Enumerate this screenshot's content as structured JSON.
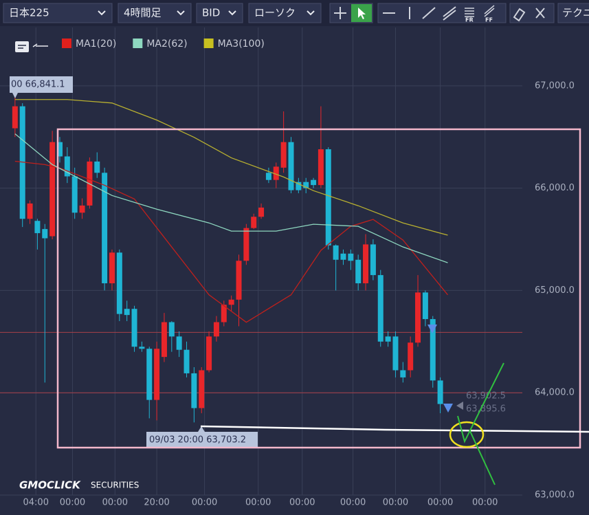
{
  "toolbar": {
    "dropdowns": [
      "日本225",
      "4時間足",
      "BID",
      "ローソク"
    ],
    "icon_labels": [
      "FR",
      "FF"
    ],
    "tech_button": "テクニ"
  },
  "logo": {
    "brand": "GMOCLICK",
    "suffix": "SECURITIES"
  },
  "chart_data": {
    "type": "candlestick",
    "legend": [
      {
        "name": "MA1(20)",
        "color": "#e0201c"
      },
      {
        "name": "MA2(62)",
        "color": "#8ed8c0"
      },
      {
        "name": "MA3(100)",
        "color": "#c8c020"
      }
    ],
    "up_color": "#e8262a",
    "down_color": "#1fb5d4",
    "candles": {
      "open": [
        66585,
        66800,
        65700,
        65680,
        65600,
        65530,
        66450,
        66310,
        66115,
        65760,
        65830,
        66260,
        66150,
        65070,
        65370,
        64820,
        64820,
        64450,
        64430,
        63930,
        64350,
        64690,
        64550,
        64420,
        64190,
        63850,
        64220,
        64550,
        64690,
        64860,
        64910,
        65290,
        65610,
        65720,
        66150,
        66080,
        66200,
        66450,
        66060,
        66060,
        66080,
        66030,
        66380,
        65440,
        65360,
        65360,
        65300,
        65070,
        65450,
        65150,
        64550,
        64550,
        64220,
        64220,
        64490,
        64980,
        64720,
        64120
      ],
      "high": [
        66900,
        66830,
        65880,
        65700,
        65650,
        66560,
        66500,
        66400,
        66200,
        65900,
        66300,
        66350,
        66200,
        65400,
        65400,
        64900,
        64850,
        64500,
        64450,
        64500,
        64780,
        64700,
        64600,
        64500,
        64250,
        64250,
        64600,
        64750,
        64900,
        64950,
        65350,
        65650,
        65750,
        65850,
        66200,
        66250,
        66750,
        66500,
        66100,
        66100,
        66100,
        66800,
        66400,
        65450,
        65400,
        65400,
        65350,
        65550,
        65500,
        65200,
        64600,
        64600,
        64300,
        64550,
        65150,
        65000,
        64750,
        64150
      ],
      "low": [
        66500,
        65620,
        65650,
        65400,
        64100,
        65500,
        66250,
        66050,
        65700,
        65700,
        65800,
        66100,
        65000,
        65000,
        64700,
        64700,
        64400,
        64400,
        63750,
        63730,
        64300,
        64400,
        64350,
        64150,
        63710,
        63800,
        64200,
        64500,
        64650,
        64800,
        64650,
        65250,
        65600,
        65700,
        66050,
        66000,
        66150,
        65950,
        65950,
        65950,
        66000,
        66000,
        65400,
        65000,
        65250,
        65200,
        65000,
        65000,
        65100,
        64450,
        64450,
        64150,
        64100,
        64150,
        64450,
        64650,
        64050,
        63800
      ],
      "close": [
        66800,
        65700,
        65850,
        65560,
        65510,
        66450,
        66310,
        66115,
        65760,
        65830,
        66260,
        66150,
        65070,
        65370,
        64770,
        64760,
        64450,
        64430,
        63930,
        64430,
        64690,
        64550,
        64420,
        64190,
        63850,
        64220,
        64550,
        64690,
        64860,
        64910,
        65290,
        65610,
        65720,
        65810,
        66080,
        66210,
        66450,
        65980,
        65980,
        66000,
        66030,
        66380,
        65440,
        65300,
        65300,
        65290,
        65070,
        65450,
        65150,
        64500,
        64500,
        64220,
        64150,
        64490,
        64980,
        64720,
        64120,
        63890
      ]
    },
    "moving_averages": [
      {
        "name": "MA1(20)",
        "color": "#c0201c",
        "x": [
          0,
          4,
          6,
          12,
          16,
          21,
          26,
          31,
          37,
          41,
          45,
          48,
          52,
          58
        ],
        "values": [
          66263,
          66230,
          66196,
          66028,
          65894,
          65425,
          64957,
          64689,
          64957,
          65392,
          65627,
          65694,
          65493,
          64957
        ]
      },
      {
        "name": "MA2(62)",
        "color": "#8ed8c0",
        "x": [
          0,
          5,
          13,
          19,
          26,
          29,
          35,
          40,
          46,
          52,
          58
        ],
        "values": [
          66531,
          66230,
          65928,
          65794,
          65660,
          65580,
          65580,
          65647,
          65627,
          65425,
          65271
        ]
      },
      {
        "name": "MA3(100)",
        "color": "#b8b030",
        "x": [
          0,
          7,
          13,
          19,
          24,
          29,
          36,
          40,
          46,
          52,
          58
        ],
        "values": [
          66866,
          66866,
          66832,
          66665,
          66497,
          66296,
          66109,
          65975,
          65828,
          65660,
          65540
        ]
      }
    ],
    "hlines": [
      64590,
      64000
    ],
    "xlim": [
      -1,
      68
    ],
    "ylim": [
      63000,
      67570
    ],
    "yticks": [
      {
        "value": 67000,
        "label": "67,000.0"
      },
      {
        "value": 66000,
        "label": "66,000.0"
      },
      {
        "value": 65000,
        "label": "65,000.0"
      },
      {
        "value": 64000,
        "label": "64,000.0"
      },
      {
        "value": 63000,
        "label": "63,000.0"
      }
    ],
    "xticks": [
      {
        "value": 2.8,
        "label": "04:00"
      },
      {
        "value": 7.7,
        "label": "00:00"
      },
      {
        "value": 13.4,
        "label": "00:00"
      },
      {
        "value": 19,
        "label": "20:00"
      },
      {
        "value": 25.4,
        "label": "00:00"
      },
      {
        "value": 32.6,
        "label": "00:00"
      },
      {
        "value": 38.5,
        "label": "00:00"
      },
      {
        "value": 45.3,
        "label": "00:00"
      },
      {
        "value": 51,
        "label": "00:00"
      },
      {
        "value": 57,
        "label": "00:00"
      },
      {
        "value": 63,
        "label": "00:00"
      }
    ],
    "annotations": {
      "high_label": "00 66,841.1",
      "low_label": "09/03 20:00 63,703.2",
      "price_a": "63,902.5",
      "price_b": "63,895.6"
    }
  }
}
